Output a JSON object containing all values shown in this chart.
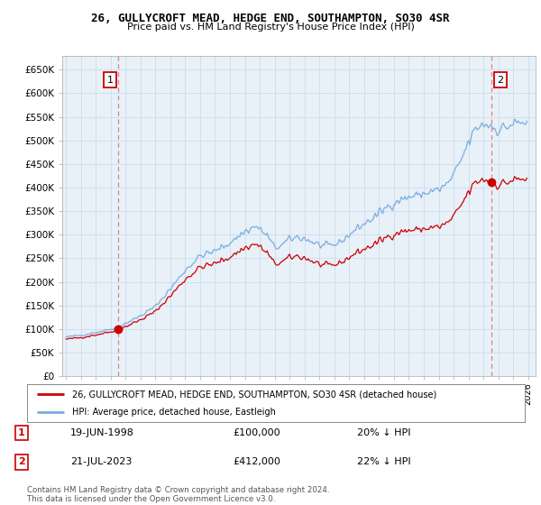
{
  "title_line1": "26, GULLYCROFT MEAD, HEDGE END, SOUTHAMPTON, SO30 4SR",
  "title_line2": "Price paid vs. HM Land Registry's House Price Index (HPI)",
  "legend_label_red": "26, GULLYCROFT MEAD, HEDGE END, SOUTHAMPTON, SO30 4SR (detached house)",
  "legend_label_blue": "HPI: Average price, detached house, Eastleigh",
  "annotation1_date": "19-JUN-1998",
  "annotation1_price": "£100,000",
  "annotation1_hpi": "20% ↓ HPI",
  "annotation2_date": "21-JUL-2023",
  "annotation2_price": "£412,000",
  "annotation2_hpi": "22% ↓ HPI",
  "footer": "Contains HM Land Registry data © Crown copyright and database right 2024.\nThis data is licensed under the Open Government Licence v3.0.",
  "sale1_year": 1998.47,
  "sale1_value": 100000,
  "sale2_year": 2023.55,
  "sale2_value": 412000,
  "ylim_min": 0,
  "ylim_max": 680000,
  "xlim_min": 1994.75,
  "xlim_max": 2026.5,
  "yticks": [
    0,
    50000,
    100000,
    150000,
    200000,
    250000,
    300000,
    350000,
    400000,
    450000,
    500000,
    550000,
    600000,
    650000
  ],
  "ytick_labels": [
    "£0",
    "£50K",
    "£100K",
    "£150K",
    "£200K",
    "£250K",
    "£300K",
    "£350K",
    "£400K",
    "£450K",
    "£500K",
    "£550K",
    "£600K",
    "£650K"
  ],
  "xtick_years": [
    1995,
    1996,
    1997,
    1998,
    1999,
    2000,
    2001,
    2002,
    2003,
    2004,
    2005,
    2006,
    2007,
    2008,
    2009,
    2010,
    2011,
    2012,
    2013,
    2014,
    2015,
    2016,
    2017,
    2018,
    2019,
    2020,
    2021,
    2022,
    2023,
    2024,
    2025,
    2026
  ],
  "red_color": "#cc0000",
  "blue_color": "#7aade0",
  "dashed_color": "#e88080",
  "grid_color": "#c8d8e8",
  "plot_bg_color": "#e8f0f8",
  "background_color": "#ffffff",
  "annotation_box_color": "#cc0000"
}
